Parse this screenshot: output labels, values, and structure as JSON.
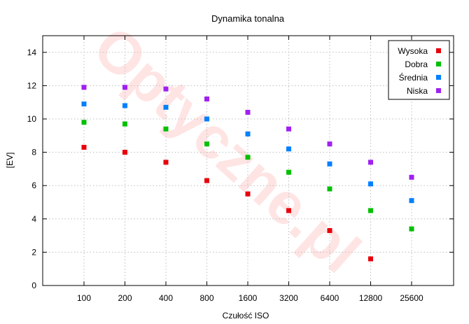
{
  "chart_data": {
    "type": "scatter",
    "title": "Dynamika tonalna",
    "xlabel": "Czułość ISO",
    "ylabel": "[EV]",
    "categories": [
      "100",
      "200",
      "400",
      "800",
      "1600",
      "3200",
      "6400",
      "12800",
      "25600"
    ],
    "ylim": [
      0,
      15
    ],
    "yticks": [
      "0",
      "2",
      "4",
      "6",
      "8",
      "10",
      "12",
      "14"
    ],
    "grid": true,
    "legend_position": "top-right",
    "series": [
      {
        "name": "Wysoka",
        "color": "#e8000b",
        "values": [
          8.3,
          8.0,
          7.4,
          6.3,
          5.5,
          4.5,
          3.3,
          1.6,
          null
        ]
      },
      {
        "name": "Dobra",
        "color": "#00c000",
        "values": [
          9.8,
          9.7,
          9.4,
          8.5,
          7.7,
          6.8,
          5.8,
          4.5,
          3.4
        ]
      },
      {
        "name": "Średnia",
        "color": "#0080ff",
        "values": [
          10.9,
          10.8,
          10.7,
          10.0,
          9.1,
          8.2,
          7.3,
          6.1,
          5.1
        ]
      },
      {
        "name": "Niska",
        "color": "#a020f0",
        "values": [
          11.9,
          11.9,
          11.8,
          11.2,
          10.4,
          9.4,
          8.5,
          7.4,
          6.5
        ]
      }
    ],
    "watermark": "Optyczne.pl"
  }
}
